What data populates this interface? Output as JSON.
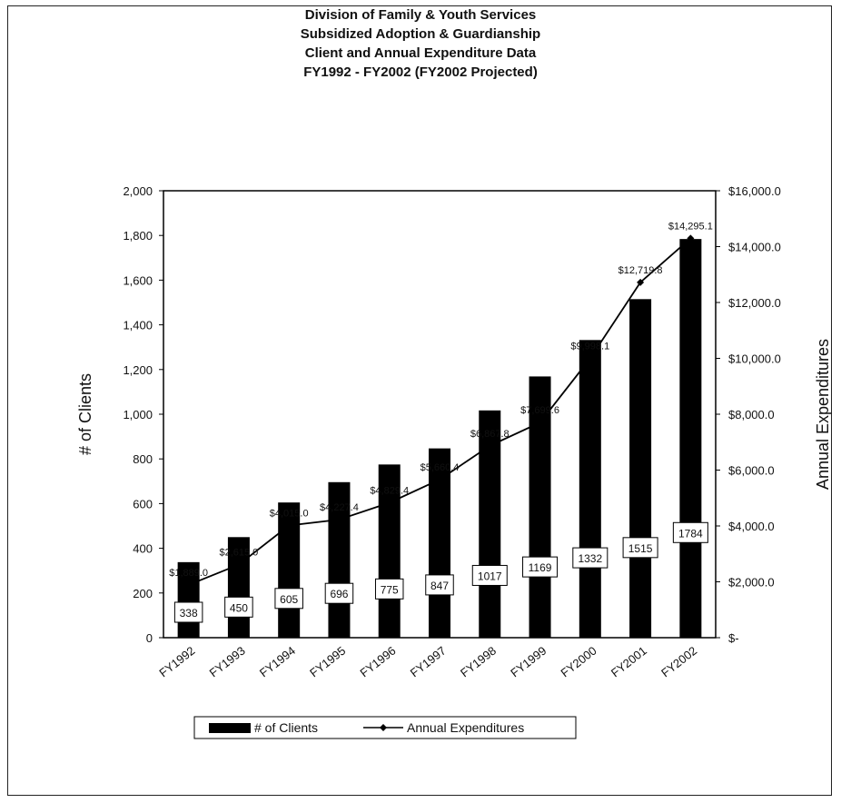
{
  "chart_data": {
    "type": "bar",
    "title": [
      "Division of Family & Youth Services",
      "Subsidized Adoption & Guardianship",
      "Client and Annual Expenditure Data",
      "FY1992 - FY2002 (FY2002 Projected)"
    ],
    "categories": [
      "FY1992",
      "FY1993",
      "FY1994",
      "FY1995",
      "FY1996",
      "FY1997",
      "FY1998",
      "FY1999",
      "FY2000",
      "FY2001",
      "FY2002"
    ],
    "series": [
      {
        "name": "# of Clients",
        "type": "bar",
        "axis": "left",
        "color": "#000000",
        "values": [
          338,
          450,
          605,
          696,
          775,
          847,
          1017,
          1169,
          1332,
          1515,
          1784
        ],
        "labels": [
          "338",
          "450",
          "605",
          "696",
          "775",
          "847",
          "1017",
          "1169",
          "1332",
          "1515",
          "1784"
        ]
      },
      {
        "name": "Annual Expenditures",
        "type": "line",
        "axis": "right",
        "color": "#000000",
        "values": [
          1889.0,
          2615.0,
          4015.0,
          4227.4,
          4829.4,
          5660.4,
          6867.8,
          7699.6,
          9998.1,
          12719.8,
          14295.1
        ],
        "labels": [
          "$1,889.0",
          "$2,615.0",
          "$4,015.0",
          "$4,227.4",
          "$4,829.4",
          "$5,660.4",
          "$6,867.8",
          "$7,699.6",
          "$9,998.1",
          "$12,719.8",
          "$14,295.1"
        ]
      }
    ],
    "ylabel": "# of Clients",
    "y2label": "Annual Expenditures",
    "ylim": [
      0,
      2000
    ],
    "y2lim": [
      0,
      16000
    ],
    "yticks": [
      "0",
      "200",
      "400",
      "600",
      "800",
      "1,000",
      "1,200",
      "1,400",
      "1,600",
      "1,800",
      "2,000"
    ],
    "y2ticks": [
      "$-",
      "$2,000.0",
      "$4,000.0",
      "$6,000.0",
      "$8,000.0",
      "$10,000.0",
      "$12,000.0",
      "$14,000.0",
      "$16,000.0"
    ],
    "legend": {
      "placement": "bottom",
      "entries": [
        "# of Clients",
        "Annual Expenditures"
      ]
    },
    "grid": false
  }
}
